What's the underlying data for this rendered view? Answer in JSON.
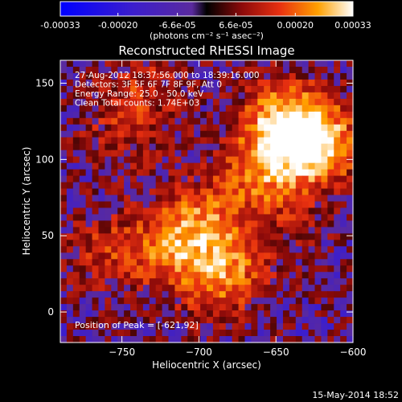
{
  "colorbar": {
    "tick_labels": [
      "-0.00033",
      "-0.00020",
      "-6.6e-05",
      "6.6e-05",
      "0.00020",
      "0.00033"
    ],
    "tick_values": [
      -0.00033,
      -0.0002,
      -6.6e-05,
      6.6e-05,
      0.0002,
      0.00033
    ],
    "range": [
      -0.00033,
      0.00033
    ],
    "unit_label": "(photons cm⁻² s⁻¹ asec⁻²)"
  },
  "chart_data": {
    "type": "heatmap",
    "title": "Reconstructed RHESSI Image",
    "xlabel": "Heliocentric X (arcsec)",
    "ylabel": "Heliocentric Y (arcsec)",
    "xlim": [
      -790,
      -600
    ],
    "ylim": [
      -20,
      165
    ],
    "x_ticks": [
      -750,
      -700,
      -650,
      -600
    ],
    "x_tick_labels": [
      "−750",
      "−700",
      "−650",
      "−600"
    ],
    "y_ticks": [
      0,
      50,
      100,
      150
    ],
    "y_tick_labels": [
      "0",
      "50",
      "100",
      "150"
    ],
    "annotations": [
      "27-Aug-2012 18:37:56.000 to 18:39:16.000",
      "Detectors: 3F 5F 6F 7F 8F 9F, Att 0",
      "Energy Range: 25.0 - 50.0 keV",
      "Clean      Total counts: 1.74E+03"
    ],
    "peak_label": "Position of Peak = [-621,92]",
    "peak": [
      -621,
      92
    ],
    "grid": false,
    "colormap": "blue-purple-red-yellow-white",
    "sources": [
      {
        "x": -625,
        "y": 110,
        "amp": 1.0
      },
      {
        "x": -645,
        "y": 125,
        "amp": 0.8
      },
      {
        "x": -660,
        "y": 90,
        "amp": 0.55
      },
      {
        "x": -700,
        "y": 60,
        "amp": 0.55
      },
      {
        "x": -720,
        "y": 40,
        "amp": 0.45
      },
      {
        "x": -680,
        "y": 30,
        "amp": 0.4
      },
      {
        "x": -760,
        "y": 40,
        "amp": 0.35
      },
      {
        "x": -750,
        "y": 120,
        "amp": 0.3
      },
      {
        "x": -735,
        "y": 150,
        "amp": 0.3
      },
      {
        "x": -690,
        "y": 20,
        "amp": 0.35
      },
      {
        "x": -640,
        "y": 60,
        "amp": 0.15
      }
    ]
  },
  "footer": {
    "date": "15-May-2014 18:52"
  }
}
